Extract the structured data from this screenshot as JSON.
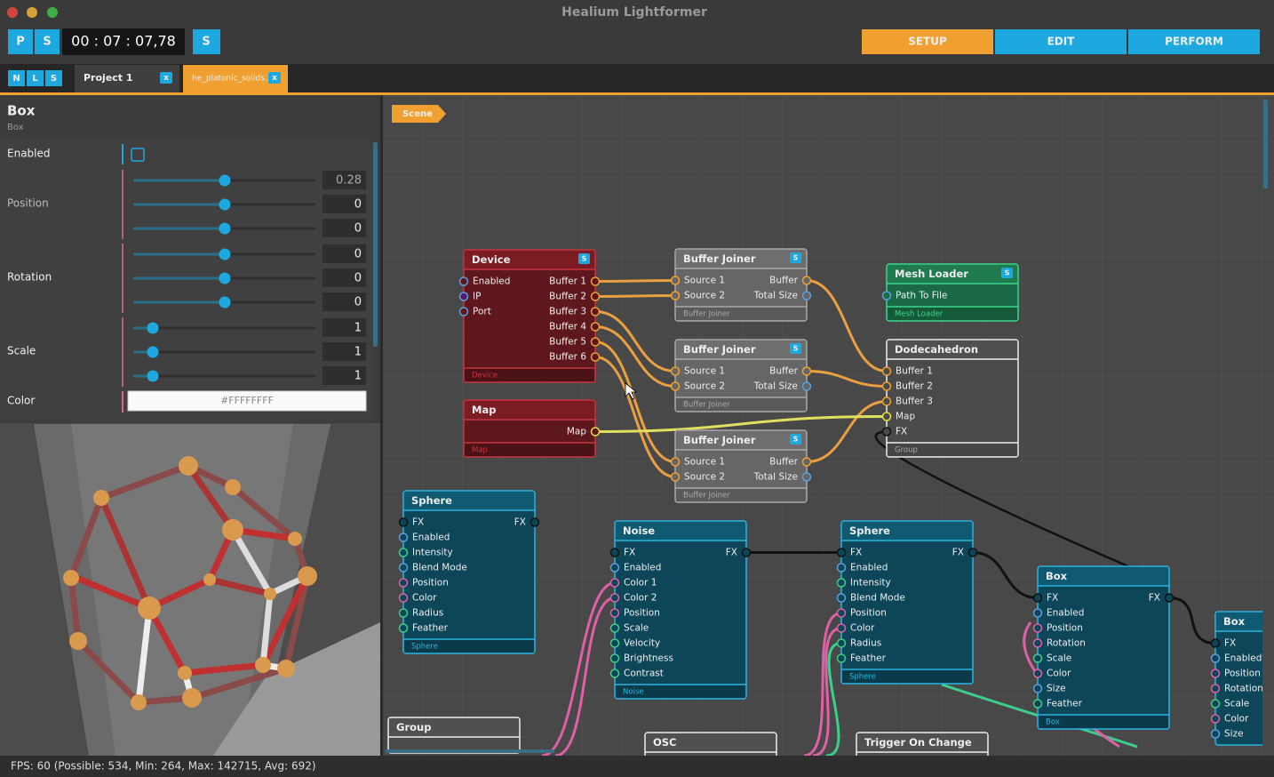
{
  "window": {
    "title": "Healium Lightformer",
    "left_buttons": [
      "P",
      "S"
    ],
    "timer": "00 : 07 : 07,78",
    "right_button": "S"
  },
  "modes": [
    "SETUP",
    "EDIT",
    "PERFORM"
  ],
  "tab_bar": {
    "toggles": [
      "N",
      "L",
      "S"
    ],
    "tabs": [
      {
        "label": "Project 1",
        "close": "x"
      },
      {
        "label": "he_platonic_solids...",
        "close": "x"
      }
    ]
  },
  "inspector": {
    "title": "Box",
    "subtitle": "Box",
    "enabled_label": "Enabled",
    "fields": [
      {
        "label": "Position",
        "values": [
          0.28,
          0,
          0
        ]
      },
      {
        "label": "Rotation",
        "values": [
          0,
          0,
          0
        ]
      },
      {
        "label": "Scale",
        "values": [
          1,
          1,
          1
        ]
      }
    ],
    "color_label": "Color",
    "color_value": "#FFFFFFFF"
  },
  "scene_label": "Scene",
  "nodes": [
    {
      "title": "Device",
      "badge": "S",
      "inputs": [
        "Enabled",
        "IP",
        "Port"
      ],
      "outputs": [
        "Buffer 1",
        "Buffer 2",
        "Buffer 3",
        "Buffer 4",
        "Buffer 5",
        "Buffer 6"
      ],
      "footer": "Device"
    },
    {
      "title": "Buffer Joiner",
      "badge": "S",
      "inputs": [
        "Source 1",
        "Source 2"
      ],
      "outputs": [
        "Buffer",
        "Total Size"
      ],
      "footer": "Buffer Joiner"
    },
    {
      "title": "Buffer Joiner",
      "badge": "S",
      "inputs": [
        "Source 1",
        "Source 2"
      ],
      "outputs": [
        "Buffer",
        "Total Size"
      ],
      "footer": "Buffer Joiner"
    },
    {
      "title": "Buffer Joiner",
      "badge": "S",
      "inputs": [
        "Source 1",
        "Source 2"
      ],
      "outputs": [
        "Buffer",
        "Total Size"
      ],
      "footer": "Buffer Joiner"
    },
    {
      "title": "Mesh Loader",
      "badge": "S",
      "inputs": [
        "Path To File"
      ],
      "outputs": [],
      "footer": "Mesh Loader"
    },
    {
      "title": "Dodecahedron",
      "inputs": [
        "Buffer 1",
        "Buffer 2",
        "Buffer 3",
        "Map",
        "FX"
      ],
      "outputs": [],
      "footer": "Group"
    },
    {
      "title": "Map",
      "inputs": [],
      "outputs": [
        "Map"
      ],
      "footer": "Map"
    },
    {
      "title": "Sphere",
      "inputs": [
        "FX",
        "Enabled",
        "Intensity",
        "Blend Mode",
        "Position",
        "Color",
        "Radius",
        "Feather"
      ],
      "outputs": [
        "FX"
      ],
      "footer": "Sphere"
    },
    {
      "title": "Noise",
      "inputs": [
        "FX",
        "Enabled",
        "Color 1",
        "Color 2",
        "Position",
        "Scale",
        "Velocity",
        "Brightness",
        "Contrast"
      ],
      "outputs": [
        "FX"
      ],
      "footer": "Noise"
    },
    {
      "title": "Sphere",
      "inputs": [
        "FX",
        "Enabled",
        "Intensity",
        "Blend Mode",
        "Position",
        "Color",
        "Radius",
        "Feather"
      ],
      "outputs": [
        "FX"
      ],
      "footer": "Sphere"
    },
    {
      "title": "Box",
      "inputs": [
        "FX",
        "Enabled",
        "Position",
        "Rotation",
        "Scale",
        "Color",
        "Size",
        "Feather"
      ],
      "outputs": [
        "FX"
      ],
      "footer": "Box"
    },
    {
      "title": "Box",
      "inputs": [
        "FX",
        "Enabled",
        "Position",
        "Rotation",
        "Scale",
        "Color",
        "Size"
      ],
      "outputs": []
    },
    {
      "title": "Group",
      "inputs": [],
      "outputs": []
    },
    {
      "title": "OSC",
      "inputs": [],
      "outputs": []
    },
    {
      "title": "Trigger On Change",
      "inputs": [],
      "outputs": []
    }
  ],
  "status": "FPS: 60 (Possible: 534, Min: 264, Max: 142715, Avg: 692)"
}
